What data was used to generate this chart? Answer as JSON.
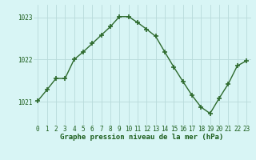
{
  "x": [
    0,
    1,
    2,
    3,
    4,
    5,
    6,
    7,
    8,
    9,
    10,
    11,
    12,
    13,
    14,
    15,
    16,
    17,
    18,
    19,
    20,
    21,
    22,
    23
  ],
  "y": [
    1021.02,
    1021.28,
    1021.55,
    1021.55,
    1022.0,
    1022.18,
    1022.38,
    1022.58,
    1022.78,
    1023.02,
    1023.02,
    1022.88,
    1022.72,
    1022.55,
    1022.18,
    1021.82,
    1021.48,
    1021.15,
    1020.87,
    1020.72,
    1021.08,
    1021.42,
    1021.85,
    1021.97
  ],
  "line_color": "#2d6a2d",
  "marker": "+",
  "marker_size": 4,
  "marker_linewidth": 1.2,
  "bg_color": "#d8f5f5",
  "grid_color": "#b8dada",
  "xlabel": "Graphe pression niveau de la mer (hPa)",
  "yticks": [
    1021,
    1022,
    1023
  ],
  "xtick_labels": [
    "0",
    "1",
    "2",
    "3",
    "4",
    "5",
    "6",
    "7",
    "8",
    "9",
    "10",
    "11",
    "12",
    "13",
    "14",
    "15",
    "16",
    "17",
    "18",
    "19",
    "20",
    "21",
    "22",
    "23"
  ],
  "ylim": [
    1020.45,
    1023.3
  ],
  "xlim": [
    -0.5,
    23.5
  ],
  "xlabel_fontsize": 6.5,
  "tick_fontsize": 5.5,
  "xlabel_color": "#1a5c1a",
  "tick_color": "#1a5c1a",
  "line_width": 1.0
}
